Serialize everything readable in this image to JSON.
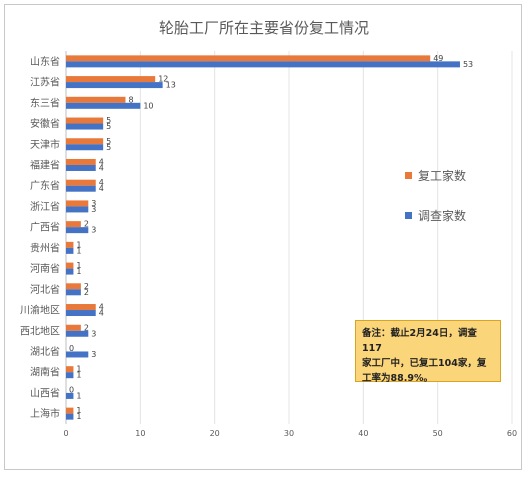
{
  "chart_data": {
    "type": "bar",
    "orientation": "horizontal",
    "title": "轮胎工厂所在主要省份复工情况",
    "categories": [
      "山东省",
      "江苏省",
      "东三省",
      "安徽省",
      "天津市",
      "福建省",
      "广东省",
      "浙江省",
      "广西省",
      "贵州省",
      "河南省",
      "河北省",
      "川渝地区",
      "西北地区",
      "湖北省",
      "湖南省",
      "山西省",
      "上海市"
    ],
    "series": [
      {
        "name": "复工家数",
        "color": "#e8793a",
        "values": [
          49,
          12,
          8,
          5,
          5,
          4,
          4,
          3,
          2,
          1,
          1,
          2,
          4,
          2,
          0,
          1,
          0,
          1
        ]
      },
      {
        "name": "调查家数",
        "color": "#4472c4",
        "values": [
          53,
          13,
          10,
          5,
          5,
          4,
          4,
          3,
          3,
          1,
          1,
          2,
          4,
          3,
          3,
          1,
          1,
          1
        ]
      }
    ],
    "xlim": [
      0,
      60
    ],
    "xticks": [
      0,
      10,
      20,
      30,
      40,
      50,
      60
    ],
    "grid": true,
    "legend_position": "right"
  },
  "note": {
    "text_line1": "备注：截止2月24日，调查117",
    "text_line2": "家工厂中，已复工104家，复",
    "text_line3": "工率为88.9%。"
  }
}
